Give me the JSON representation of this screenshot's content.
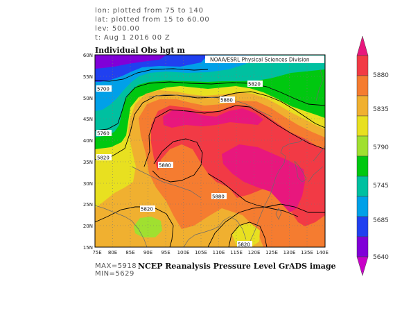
{
  "header": {
    "lon_line": "lon: plotted from 75 to 140",
    "lat_line": "lat: plotted from 15 to 60.00",
    "lev_line": "lev: 500.00",
    "time_line": "t: Aug 1 2016 00 Z"
  },
  "plot_title": "Individual Obs hgt m",
  "credit": "NOAA/ESRL Physical Sciences Division",
  "footer": {
    "max": "MAX=5918",
    "min": "MIN=5629",
    "title": "NCEP Reanalysis Pressure Level GrADS image"
  },
  "map": {
    "lon_ticks": [
      "75E",
      "80E",
      "85E",
      "90E",
      "95E",
      "100E",
      "105E",
      "110E",
      "115E",
      "120E",
      "125E",
      "130E",
      "135E",
      "140E"
    ],
    "lat_ticks": [
      "60N",
      "55N",
      "50N",
      "45N",
      "40N",
      "35N",
      "30N",
      "25N",
      "20N",
      "15N"
    ],
    "contour_labels": [
      {
        "text": "5700"
      },
      {
        "text": "5760"
      },
      {
        "text": "5820"
      },
      {
        "text": "5820"
      },
      {
        "text": "5880"
      },
      {
        "text": "5880"
      },
      {
        "text": "5880"
      },
      {
        "text": "5820"
      },
      {
        "text": "5820"
      }
    ]
  },
  "colorbar": {
    "labels": [
      "5880",
      "5835",
      "5790",
      "5745",
      "5685",
      "5640"
    ],
    "colors": [
      "#e8177d",
      "#f23a45",
      "#f57c30",
      "#f0b030",
      "#e8e020",
      "#a0e030",
      "#00c810",
      "#00c0a0",
      "#00a0e8",
      "#2040f0",
      "#8000d8",
      "#e8177d"
    ]
  },
  "colors": {
    "c5640": "#8000d8",
    "c5685": "#2040f0",
    "c5700": "#00a0e8",
    "c5745": "#00c0a0",
    "c5760": "#00c810",
    "c5790": "#a0e030",
    "c5820": "#e8e020",
    "c5835": "#f0b030",
    "c5860": "#f57c30",
    "c5880": "#f23a45",
    "c5900": "#e8177d"
  }
}
